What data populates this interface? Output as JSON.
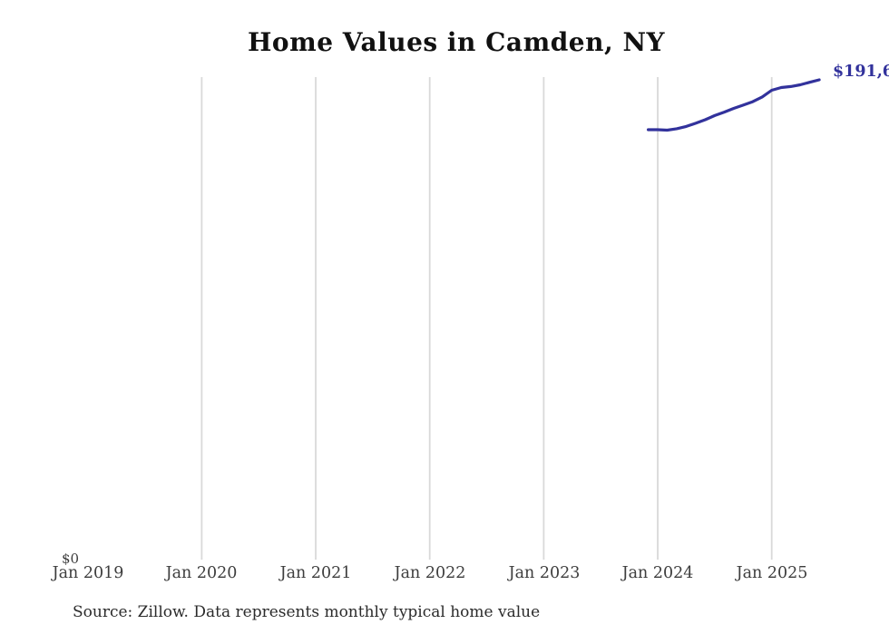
{
  "title": "Home Values in Camden, NY",
  "source_note": "Source: Zillow. Data represents monthly typical home value",
  "colors": {
    "line": "#32329c",
    "gridline": "#d9d9d9",
    "title": "#111111",
    "tick_label": "#3d3d3d",
    "source_text": "#2b2b2b"
  },
  "chart_data": {
    "type": "line",
    "title": "Home Values in Camden, NY",
    "xlabel": "",
    "ylabel": "",
    "grid": "vertical-gridlines-only",
    "legend": "none",
    "ylim": [
      0,
      192700
    ],
    "x_tick_labels": [
      "Jan 2019",
      "Jan 2020",
      "Jan 2021",
      "Jan 2022",
      "Jan 2023",
      "Jan 2024",
      "Jan 2025"
    ],
    "y_tick_labels": [
      "$0"
    ],
    "end_label": "$191,6",
    "series": [
      {
        "name": "Monthly typical home value",
        "x": [
          "Dec 2023",
          "Jan 2024",
          "Feb 2024",
          "Mar 2024",
          "Apr 2024",
          "May 2024",
          "Jun 2024",
          "Jul 2024",
          "Aug 2024",
          "Sep 2024",
          "Oct 2024",
          "Nov 2024",
          "Dec 2024",
          "Jan 2025",
          "Feb 2025",
          "Mar 2025",
          "Apr 2025",
          "May 2025",
          "Jun 2025"
        ],
        "values": [
          171500,
          171500,
          171300,
          171900,
          172800,
          174100,
          175500,
          177200,
          178600,
          180100,
          181400,
          182800,
          184700,
          187400,
          188500,
          188900,
          189600,
          190600,
          191600
        ]
      }
    ]
  }
}
